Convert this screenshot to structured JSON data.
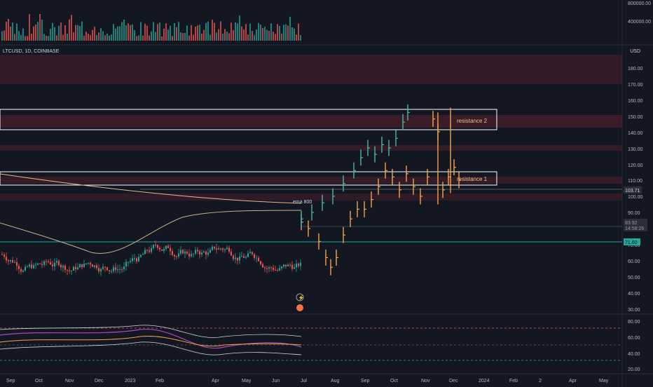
{
  "symbol_line": "LTCUSD, 1D, COINBASE",
  "currency": "USD",
  "volume_ticks": [
    "800000.00",
    "400000.00"
  ],
  "price_ticks": [
    "180.00",
    "170.00",
    "160.00",
    "150.00",
    "140.00",
    "130.00",
    "120.00",
    "110.00",
    "100.00",
    "90.00",
    "80.00",
    "70.00",
    "60.00",
    "50.00",
    "40.00",
    "30.00"
  ],
  "price_badges": {
    "current": "103.71",
    "mid_top": "83.92",
    "mid_bottom": "14:58:26",
    "support": "71.60"
  },
  "rsi_ticks": [
    "80.00",
    "60.00",
    "40.00",
    "20.00"
  ],
  "time_ticks": [
    "Sep",
    "Oct",
    "Nov",
    "Dec",
    "2023",
    "Feb",
    "Apr",
    "May",
    "Jun",
    "Jul",
    "Aug",
    "Sep",
    "Oct",
    "Nov",
    "Dec",
    "2024",
    "Feb",
    "2",
    "Apr",
    "May"
  ],
  "annotations": {
    "resistance_2": "resistance 2",
    "resistance_1": "resistance 1",
    "ema": "ema 800"
  },
  "colors": {
    "background": "#131722",
    "up": "#26a69a",
    "down": "#ef5350",
    "projection": "#f7a24a",
    "ghost": "#4db6ac",
    "resistance_box": "#ffffff",
    "zone": "#4a1f2a",
    "support_line": "#26a69a",
    "ema": "#e8b98a",
    "rsi": "#ab47bc"
  },
  "icons": [
    "lightning-icon",
    "event-icon"
  ]
}
